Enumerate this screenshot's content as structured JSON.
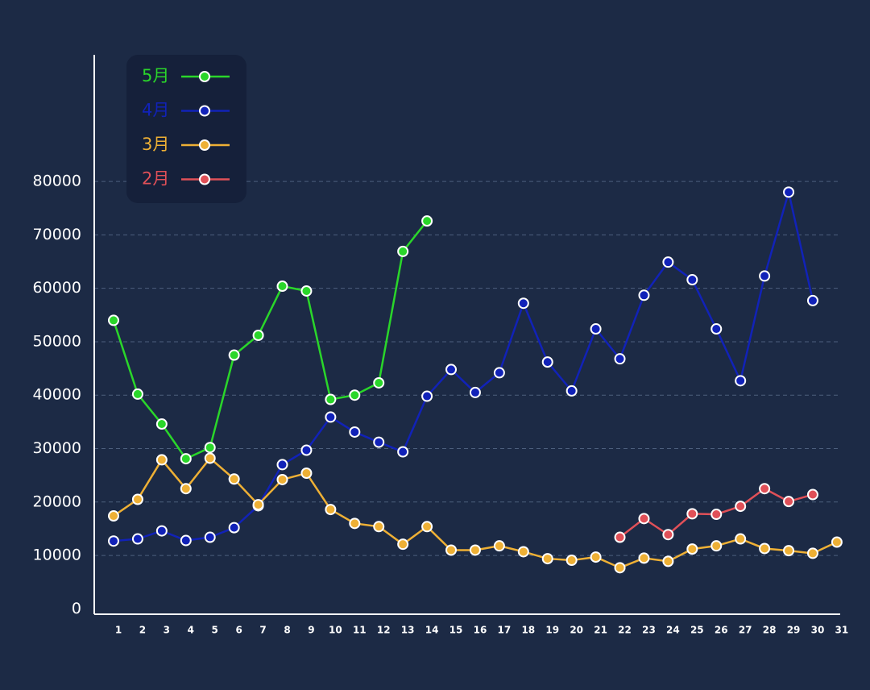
{
  "chart_data": {
    "type": "line",
    "categories": [
      "1",
      "2",
      "3",
      "4",
      "5",
      "6",
      "7",
      "8",
      "9",
      "10",
      "11",
      "12",
      "13",
      "14",
      "15",
      "16",
      "17",
      "18",
      "19",
      "20",
      "21",
      "22",
      "23",
      "24",
      "25",
      "26",
      "27",
      "28",
      "29",
      "30",
      "31"
    ],
    "series": [
      {
        "name": "5月",
        "color": "#2ad62a",
        "values": [
          54000,
          40200,
          34600,
          28100,
          30200,
          47500,
          51200,
          60400,
          59500,
          39200,
          40000,
          42300,
          66900,
          72600,
          null,
          null,
          null,
          null,
          null,
          null,
          null,
          null,
          null,
          null,
          null,
          null,
          null,
          null,
          null,
          null,
          null
        ]
      },
      {
        "name": "4月",
        "color": "#1122b8",
        "values": [
          12700,
          13100,
          14600,
          12800,
          13400,
          15200,
          19300,
          27000,
          29700,
          35900,
          33100,
          31200,
          29400,
          39800,
          44800,
          40500,
          44200,
          57200,
          46200,
          40800,
          52400,
          46800,
          58700,
          64900,
          61600,
          52400,
          42700,
          62300,
          78000,
          57700,
          null
        ]
      },
      {
        "name": "3月",
        "color": "#eeb035",
        "values": [
          17400,
          20500,
          27900,
          22500,
          28200,
          24300,
          19500,
          24200,
          25400,
          18600,
          16000,
          15400,
          12100,
          15400,
          11000,
          11000,
          11800,
          10700,
          9400,
          9100,
          9700,
          7700,
          9500,
          8900,
          11200,
          11800,
          13100,
          11300,
          10900,
          10400,
          12500
        ]
      },
      {
        "name": "2月",
        "color": "#e05058",
        "values": [
          null,
          null,
          null,
          null,
          null,
          null,
          null,
          null,
          null,
          null,
          null,
          null,
          null,
          null,
          null,
          null,
          null,
          null,
          null,
          null,
          null,
          13400,
          16900,
          13900,
          17800,
          17700,
          19200,
          22500,
          20100,
          21400,
          null
        ]
      }
    ],
    "ylim": [
      -1000,
      103700
    ],
    "yticks": [
      0,
      10000,
      20000,
      30000,
      40000,
      50000,
      60000,
      70000,
      80000
    ],
    "grid": true,
    "legend": "top-left"
  }
}
